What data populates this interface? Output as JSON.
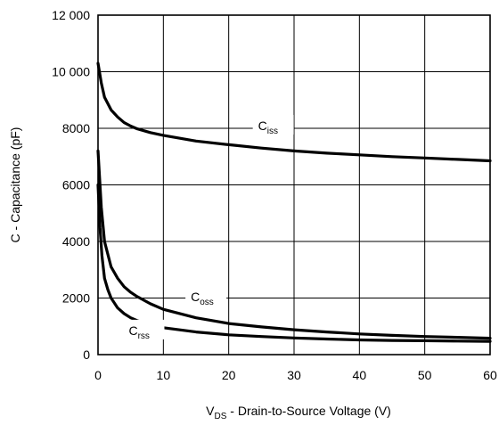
{
  "chart_data": {
    "type": "line",
    "xlabel": {
      "main": "V",
      "sub": "DS",
      "rest": " - Drain-to-Source Voltage (V)"
    },
    "ylabel": "C - Capacitance (pF)",
    "xlim": [
      0,
      60
    ],
    "ylim": [
      0,
      12000
    ],
    "xticks": [
      0,
      10,
      20,
      30,
      40,
      50,
      60
    ],
    "yticks": [
      0,
      2000,
      4000,
      6000,
      8000,
      10000,
      12000
    ],
    "xtick_labels": [
      "0",
      "10",
      "20",
      "30",
      "40",
      "50",
      "60"
    ],
    "ytick_labels": [
      "0",
      "2000",
      "4000",
      "6000",
      "8000",
      "10 000",
      "12 000"
    ],
    "grid": true,
    "colors": {
      "line": "#000000",
      "grid": "#000000"
    },
    "series": [
      {
        "name": "Ciss",
        "label_main": "C",
        "label_sub": "iss",
        "x": [
          0,
          0.5,
          1,
          2,
          3,
          4,
          5,
          6,
          8,
          10,
          15,
          20,
          25,
          30,
          35,
          40,
          45,
          50,
          55,
          60
        ],
        "y": [
          10300,
          9600,
          9100,
          8650,
          8400,
          8200,
          8080,
          7980,
          7850,
          7750,
          7550,
          7420,
          7300,
          7200,
          7120,
          7060,
          7000,
          6950,
          6900,
          6850
        ]
      },
      {
        "name": "Coss",
        "label_main": "C",
        "label_sub": "oss",
        "x": [
          0,
          0.5,
          1,
          2,
          3,
          4,
          5,
          6,
          8,
          10,
          15,
          20,
          25,
          30,
          35,
          40,
          45,
          50,
          55,
          60
        ],
        "y": [
          7200,
          5200,
          4000,
          3100,
          2700,
          2400,
          2200,
          2050,
          1800,
          1600,
          1300,
          1100,
          980,
          880,
          800,
          730,
          680,
          640,
          610,
          580
        ]
      },
      {
        "name": "Crss",
        "label_main": "C",
        "label_sub": "rss",
        "x": [
          0,
          0.3,
          0.6,
          1,
          1.5,
          2,
          3,
          4,
          5,
          6,
          8,
          10,
          15,
          20,
          25,
          30,
          35,
          40,
          45,
          50,
          55,
          60
        ],
        "y": [
          6000,
          4500,
          3500,
          2700,
          2300,
          2000,
          1650,
          1450,
          1300,
          1200,
          1050,
          950,
          800,
          700,
          640,
          590,
          550,
          520,
          500,
          490,
          480,
          470
        ]
      }
    ],
    "annotations": [
      {
        "series": 0,
        "x": 24.5,
        "y": 8000
      },
      {
        "series": 1,
        "x": 14.2,
        "y": 1950
      },
      {
        "series": 2,
        "x": 4.7,
        "y": 760
      }
    ]
  }
}
